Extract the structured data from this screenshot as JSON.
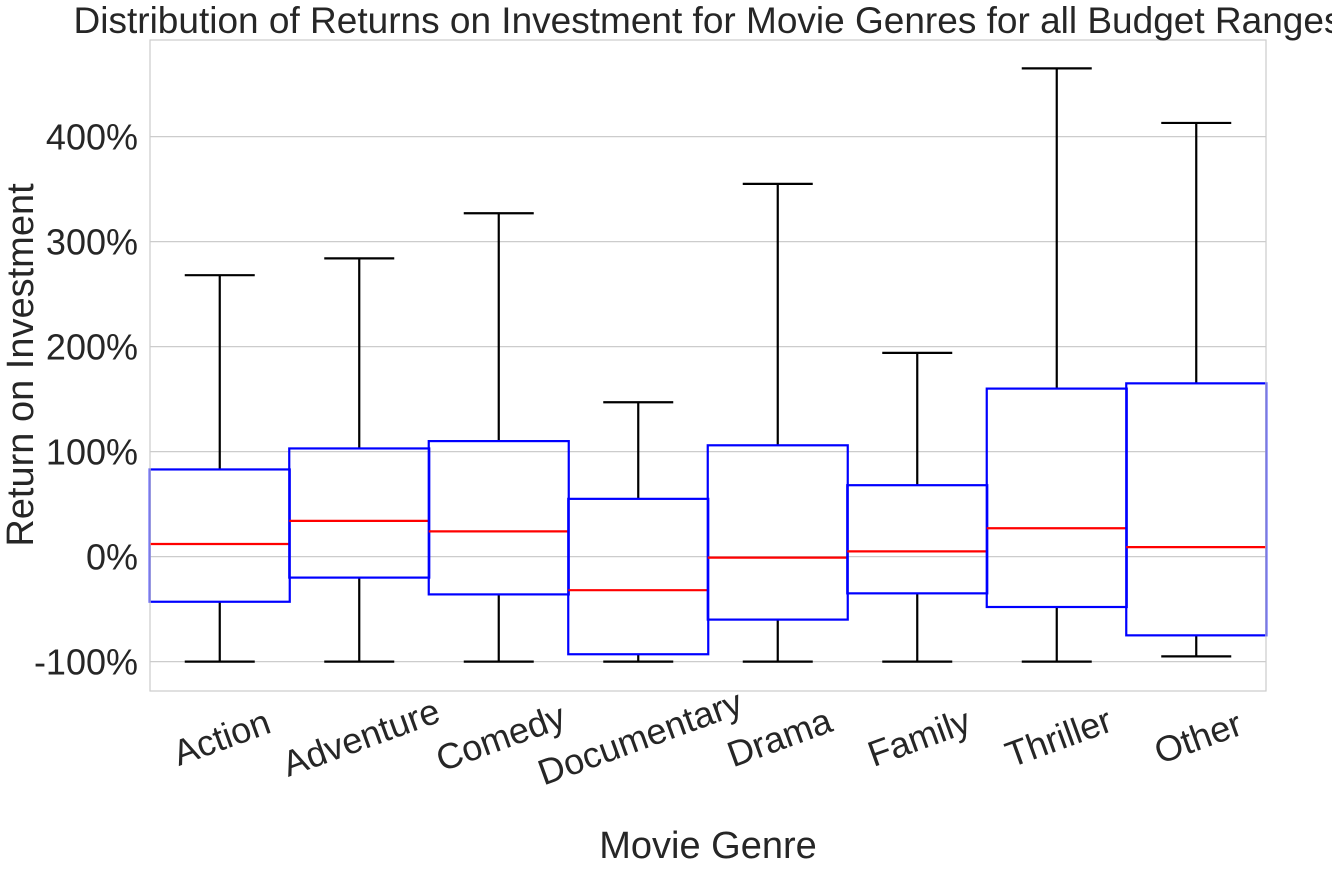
{
  "chart_data": {
    "type": "box",
    "title": "Distribution of Returns on Investment for Movie Genres for all Budget Ranges",
    "xlabel": "Movie Genre",
    "ylabel": "Return on Investment",
    "y_unit": "%",
    "ylim": [
      -128,
      492
    ],
    "yticks": [
      -100,
      0,
      100,
      200,
      300,
      400
    ],
    "ytick_labels": [
      "-100%",
      "0%",
      "100%",
      "200%",
      "300%",
      "400%"
    ],
    "grid": true,
    "categories": [
      "Action",
      "Adventure",
      "Comedy",
      "Documentary",
      "Drama",
      "Family",
      "Thriller",
      "Other"
    ],
    "boxes": [
      {
        "label": "Action",
        "whisker_low": -100,
        "q1": -43,
        "median": 12,
        "q3": 83,
        "whisker_high": 268
      },
      {
        "label": "Adventure",
        "whisker_low": -100,
        "q1": -20,
        "median": 34,
        "q3": 103,
        "whisker_high": 284
      },
      {
        "label": "Comedy",
        "whisker_low": -100,
        "q1": -36,
        "median": 24,
        "q3": 110,
        "whisker_high": 327
      },
      {
        "label": "Documentary",
        "whisker_low": -100,
        "q1": -93,
        "median": -32,
        "q3": 55,
        "whisker_high": 147
      },
      {
        "label": "Drama",
        "whisker_low": -100,
        "q1": -60,
        "median": -1,
        "q3": 106,
        "whisker_high": 355
      },
      {
        "label": "Family",
        "whisker_low": -100,
        "q1": -35,
        "median": 5,
        "q3": 68,
        "whisker_high": 194
      },
      {
        "label": "Thriller",
        "whisker_low": -100,
        "q1": -48,
        "median": 27,
        "q3": 160,
        "whisker_high": 465
      },
      {
        "label": "Other",
        "whisker_low": -95,
        "q1": -75,
        "median": 9,
        "q3": 165,
        "whisker_high": 413
      }
    ],
    "colors": {
      "box": "#0000ff",
      "median": "#ff0000",
      "whisker": "#000000",
      "grid": "#cccccc",
      "axes_border": "#cccccc",
      "text": "#262626"
    }
  }
}
